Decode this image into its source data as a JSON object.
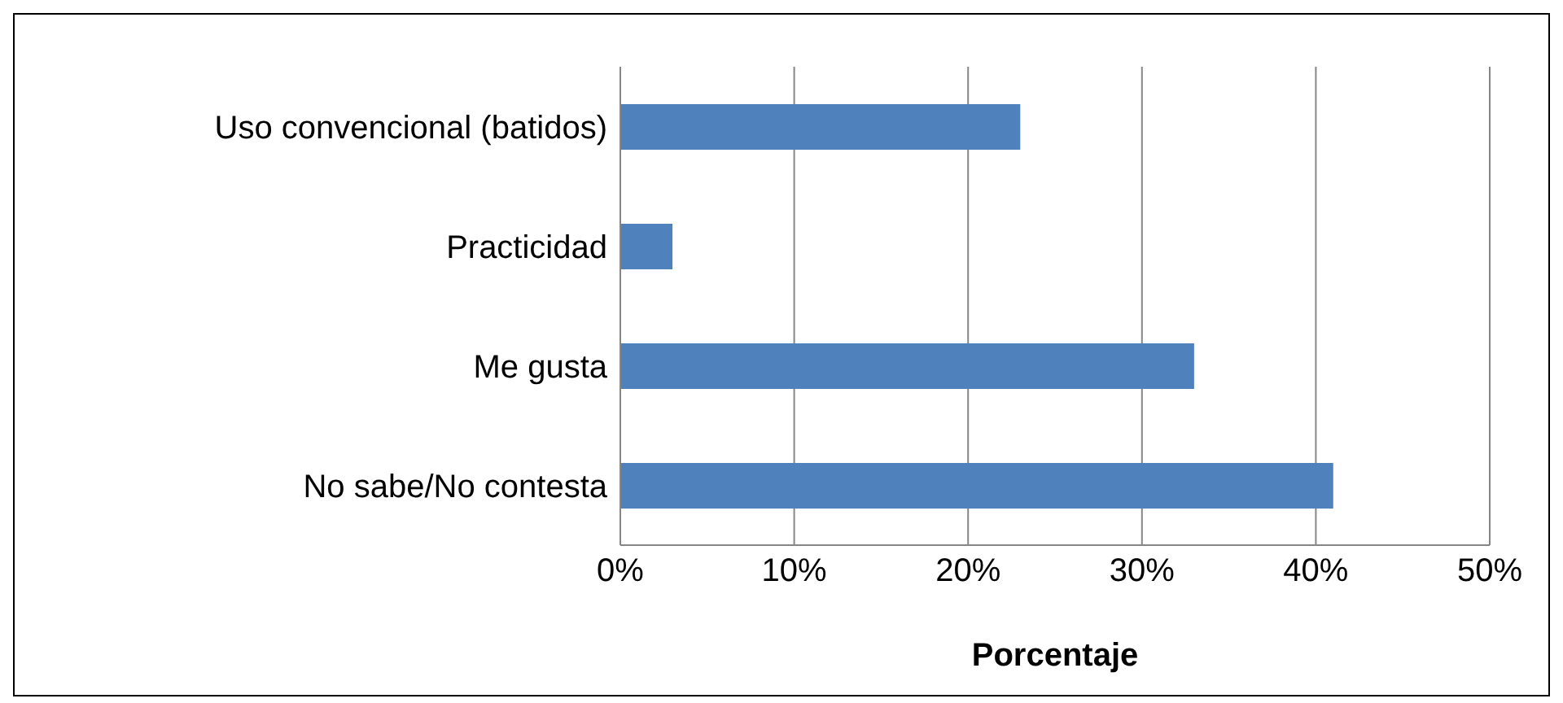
{
  "chart_data": {
    "type": "bar",
    "orientation": "horizontal",
    "xlabel": "Porcentaje",
    "categories": [
      "Uso convencional (batidos)",
      "Practicidad",
      "Me gusta",
      "No sabe/No contesta"
    ],
    "values": [
      23,
      3,
      33,
      41
    ],
    "color": "#4f81bd",
    "xlim": [
      0,
      50
    ],
    "xticks": [
      {
        "value": 0,
        "label": "0%"
      },
      {
        "value": 10,
        "label": "10%"
      },
      {
        "value": 20,
        "label": "20%"
      },
      {
        "value": 30,
        "label": "30%"
      },
      {
        "value": 40,
        "label": "40%"
      },
      {
        "value": 50,
        "label": "50%"
      }
    ],
    "grid": "x"
  }
}
